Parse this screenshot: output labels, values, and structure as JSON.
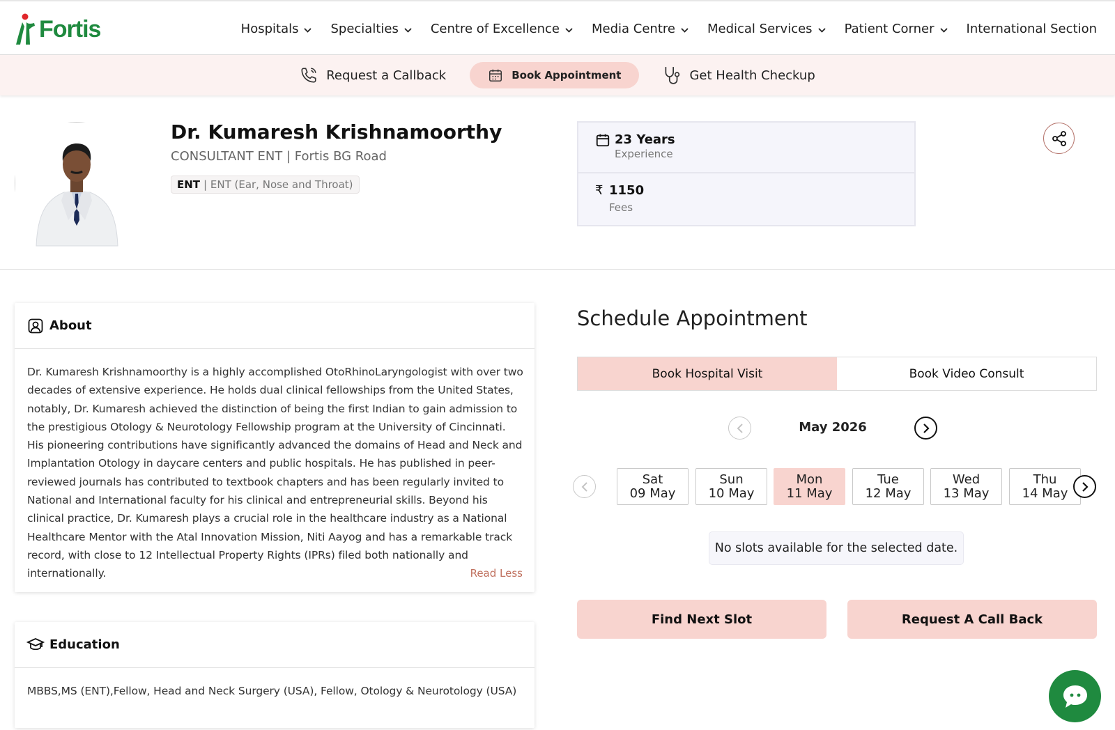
{
  "brand": {
    "name": "Fortis",
    "color": "#1f8a3f",
    "accent": "#f8d4cf"
  },
  "nav": {
    "items": [
      {
        "label": "Hospitals",
        "dropdown": true
      },
      {
        "label": "Specialties",
        "dropdown": true
      },
      {
        "label": "Centre of Excellence",
        "dropdown": true
      },
      {
        "label": "Media Centre",
        "dropdown": true
      },
      {
        "label": "Medical Services",
        "dropdown": true
      },
      {
        "label": "Patient Corner",
        "dropdown": true
      },
      {
        "label": "International Section",
        "dropdown": false
      }
    ]
  },
  "actions": {
    "callback": "Request a Callback",
    "book": "Book Appointment",
    "checkup": "Get Health Checkup"
  },
  "doctor": {
    "name": "Dr. Kumaresh Krishnamoorthy",
    "designation": "CONSULTANT ENT | Fortis BG Road",
    "tag_primary": "ENT",
    "tag_secondary": "| ENT (Ear, Nose and Throat)"
  },
  "stats": {
    "experience_value": "23 Years",
    "experience_label": "Experience",
    "fees_symbol": "₹",
    "fees_value": "1150",
    "fees_label": "Fees"
  },
  "about": {
    "title": "About",
    "text": "Dr. Kumaresh Krishnamoorthy is a highly accomplished OtoRhinoLaryngologist with over two decades of extensive experience. He holds dual clinical fellowships from the United States, notably, Dr. Kumaresh achieved the distinction of being the first Indian to gain admission to the prestigious Otology & Neurotology Fellowship program at the University of Cincinnati. His pioneering contributions have significantly advanced the domains of Head and Neck and Implantation Otology in daycare centers and public hospitals. He has published in peer-reviewed journals has contributed to textbook chapters and has been regularly invited to National and International faculty for his clinical and entrepreneurial skills. Beyond his clinical practice, Dr. Kumaresh plays a crucial role in the healthcare industry as a National Healthcare Mentor with the Atal Innovation Mission, Niti Aayog and has a remarkable track record, with close to 12 Intellectual Property Rights (IPRs) filed both nationally and internationally.",
    "toggle": "Read Less"
  },
  "education": {
    "title": "Education",
    "text": "MBBS,MS (ENT),Fellow, Head and Neck Surgery (USA), Fellow, Otology & Neurotology (USA)"
  },
  "schedule": {
    "title": "Schedule Appointment",
    "tabs": [
      "Book Hospital Visit",
      "Book Video Consult"
    ],
    "active_tab": 0,
    "month": "May 2026",
    "dates": [
      {
        "day": "Sat",
        "date": "09 May"
      },
      {
        "day": "Sun",
        "date": "10 May"
      },
      {
        "day": "Mon",
        "date": "11 May"
      },
      {
        "day": "Tue",
        "date": "12 May"
      },
      {
        "day": "Wed",
        "date": "13 May"
      },
      {
        "day": "Thu",
        "date": "14 May"
      }
    ],
    "selected_date": 2,
    "no_slots": "No slots available for the selected date.",
    "find_next": "Find Next Slot",
    "call_back": "Request A Call Back"
  },
  "icons": {
    "share": "share-icon",
    "chat": "chat-icon",
    "calendar": "calendar-icon",
    "phone": "phone-icon",
    "stethoscope": "stethoscope-icon"
  }
}
